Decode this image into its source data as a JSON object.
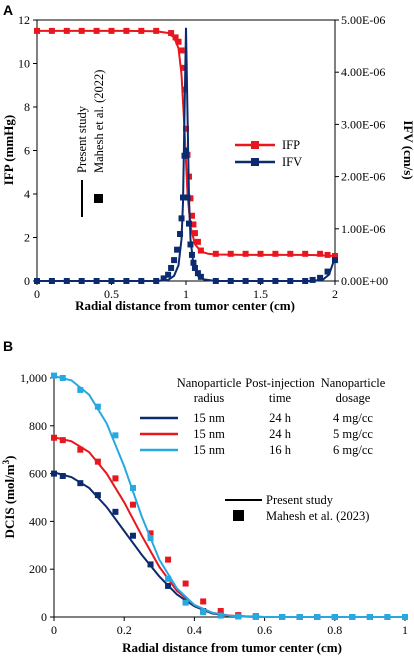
{
  "chart_data": [
    {
      "panel": "A",
      "type": "line",
      "xlabel": "Radial distance from tumor center (cm)",
      "ylabel": "IFP (mmHg)",
      "y2label": "IFV (cm/s)",
      "xlim": [
        0,
        2
      ],
      "ylim": [
        0,
        12
      ],
      "y2lim": [
        0,
        5e-06
      ],
      "xticks": [
        "0",
        "0.5",
        "1",
        "1.5",
        "2"
      ],
      "yticks": [
        "0",
        "2",
        "4",
        "6",
        "8",
        "10",
        "12"
      ],
      "y2ticks": [
        "0.00E+00",
        "1.00E-06",
        "2.00E-06",
        "3.00E-06",
        "4.00E-06",
        "5.00E-06"
      ],
      "legend": [
        "IFP",
        "IFV"
      ],
      "key_labels": [
        "Present study",
        "Mahesh et al. (2022)"
      ],
      "series": [
        {
          "name": "IFP",
          "axis": "left",
          "color": "#e8171d",
          "line": {
            "x": [
              0,
              0.2,
              0.4,
              0.6,
              0.8,
              0.88,
              0.92,
              0.95,
              0.97,
              0.99,
              1.0,
              1.01,
              1.03,
              1.06,
              1.1,
              1.15,
              1.2,
              1.4,
              1.6,
              1.8,
              1.9,
              2.0
            ],
            "y": [
              11.5,
              11.5,
              11.5,
              11.5,
              11.48,
              11.4,
              11.2,
              10.7,
              9.5,
              7.0,
              5.5,
              4.0,
              2.5,
              1.7,
              1.35,
              1.25,
              1.22,
              1.2,
              1.2,
              1.2,
              1.18,
              1.15
            ]
          },
          "markers": {
            "x": [
              0,
              0.1,
              0.2,
              0.3,
              0.4,
              0.5,
              0.6,
              0.7,
              0.8,
              0.9,
              0.93,
              0.95,
              0.97,
              0.98,
              0.99,
              1.0,
              1.01,
              1.02,
              1.03,
              1.04,
              1.05,
              1.06,
              1.08,
              1.1,
              1.2,
              1.3,
              1.4,
              1.5,
              1.6,
              1.7,
              1.8,
              1.9,
              1.95,
              2.0
            ],
            "y": [
              11.5,
              11.5,
              11.5,
              11.5,
              11.5,
              11.5,
              11.5,
              11.5,
              11.5,
              11.4,
              11.2,
              11.0,
              10.6,
              9.8,
              8.8,
              7.0,
              5.8,
              4.8,
              3.8,
              3.0,
              2.6,
              2.2,
              1.8,
              1.4,
              1.25,
              1.25,
              1.25,
              1.25,
              1.25,
              1.25,
              1.25,
              1.25,
              1.2,
              1.15
            ]
          }
        },
        {
          "name": "IFV",
          "axis": "right",
          "color": "#0c2a6e",
          "line": {
            "x": [
              0,
              0.6,
              0.8,
              0.88,
              0.92,
              0.95,
              0.97,
              0.98,
              0.99,
              1.0,
              1.01,
              1.02,
              1.03,
              1.05,
              1.08,
              1.12,
              1.2,
              1.6,
              1.85,
              1.92,
              1.96,
              2.0
            ],
            "y": [
              0,
              0,
              0,
              2e-08,
              1e-07,
              3e-07,
              8e-07,
              1.5e-06,
              3.2e-06,
              4.85e-06,
              3.2e-06,
              1.6e-06,
              8e-07,
              3e-07,
              1e-07,
              3e-08,
              0,
              0,
              0,
              3e-08,
              1.2e-07,
              4.5e-07
            ]
          },
          "markers": {
            "x": [
              0,
              0.1,
              0.2,
              0.3,
              0.4,
              0.5,
              0.6,
              0.7,
              0.8,
              0.85,
              0.88,
              0.9,
              0.92,
              0.94,
              0.96,
              0.97,
              0.98,
              0.99,
              1.0,
              1.01,
              1.02,
              1.03,
              1.04,
              1.05,
              1.06,
              1.08,
              1.1,
              1.2,
              1.3,
              1.4,
              1.5,
              1.6,
              1.7,
              1.8,
              1.85,
              1.9,
              1.95,
              2.0
            ],
            "y": [
              0,
              0,
              0,
              0,
              0,
              0,
              0,
              0,
              0,
              5e-08,
              1.2e-07,
              2.5e-07,
              4e-07,
              6e-07,
              9e-07,
              1.2e-06,
              1.6e-06,
              2.4e-06,
              2.5e-06,
              1.6e-06,
              1.1e-06,
              7e-07,
              5e-07,
              3.5e-07,
              2.5e-07,
              1.5e-07,
              8e-08,
              0,
              0,
              0,
              0,
              0,
              0,
              0,
              2e-08,
              6e-08,
              1.8e-07,
              4e-07
            ]
          }
        }
      ]
    },
    {
      "panel": "B",
      "type": "line",
      "xlabel": "Radial distance from tumor center (cm)",
      "ylabel": "DCIS (mol/m3)",
      "xlim": [
        0,
        1
      ],
      "ylim": [
        0,
        1000
      ],
      "xticks": [
        "0",
        "0.2",
        "0.4",
        "0.6",
        "0.8",
        "1"
      ],
      "yticks": [
        "0",
        "200",
        "400",
        "600",
        "800",
        "1,000"
      ],
      "table_headers": [
        "Nanoparticle\nradius",
        "Post-injection\ntime",
        "Nanoparticle\ndosage"
      ],
      "table_rows": [
        [
          "15 nm",
          "24 h",
          "4 mg/cc"
        ],
        [
          "15 nm",
          "24 h",
          "5 mg/cc"
        ],
        [
          "15 nm",
          "16 h",
          "6 mg/cc"
        ]
      ],
      "key_labels": [
        "Present study",
        "Mahesh et al. (2023)"
      ],
      "series": [
        {
          "name": "15 nm / 24 h / 4 mg/cc",
          "color": "#0c2a6e",
          "line": {
            "x": [
              0,
              0.05,
              0.1,
              0.15,
              0.2,
              0.25,
              0.3,
              0.35,
              0.4,
              0.45,
              0.5,
              0.55,
              0.6,
              0.7,
              0.8,
              0.9,
              1.0
            ],
            "y": [
              605,
              585,
              540,
              460,
              360,
              260,
              170,
              95,
              45,
              15,
              5,
              2,
              0,
              0,
              0,
              0,
              0
            ]
          },
          "markers": {
            "x": [
              0,
              0.025,
              0.075,
              0.125,
              0.175,
              0.225,
              0.275,
              0.325,
              0.375,
              0.425,
              0.475,
              0.525,
              0.575,
              0.65,
              0.7,
              0.75,
              0.8,
              0.85,
              0.9,
              0.95,
              1.0
            ],
            "y": [
              600,
              590,
              560,
              510,
              440,
              340,
              220,
              130,
              65,
              25,
              10,
              5,
              2,
              0,
              0,
              0,
              0,
              0,
              0,
              0,
              0
            ]
          }
        },
        {
          "name": "15 nm / 24 h / 5 mg/cc",
          "color": "#e8171d",
          "line": {
            "x": [
              0,
              0.05,
              0.1,
              0.15,
              0.2,
              0.25,
              0.3,
              0.35,
              0.4,
              0.45,
              0.5,
              0.55,
              0.6,
              0.7,
              0.8,
              0.9,
              1.0
            ],
            "y": [
              752,
              735,
              690,
              600,
              480,
              340,
              210,
              110,
              50,
              18,
              6,
              2,
              0,
              0,
              0,
              0,
              0
            ]
          },
          "markers": {
            "x": [
              0,
              0.025,
              0.075,
              0.125,
              0.175,
              0.225,
              0.275,
              0.325,
              0.375,
              0.425,
              0.475,
              0.525,
              0.575,
              0.65,
              0.7,
              0.75,
              0.8,
              0.85,
              0.9,
              0.95,
              1.0
            ],
            "y": [
              750,
              740,
              700,
              650,
              580,
              470,
              350,
              240,
              140,
              65,
              25,
              8,
              3,
              0,
              0,
              0,
              0,
              0,
              0,
              0,
              0
            ]
          }
        },
        {
          "name": "15 nm / 16 h / 6 mg/cc",
          "color": "#27a8e0",
          "line": {
            "x": [
              0,
              0.05,
              0.1,
              0.15,
              0.2,
              0.25,
              0.3,
              0.35,
              0.4,
              0.45,
              0.5,
              0.55,
              0.6,
              0.7,
              0.8,
              0.9,
              1.0
            ],
            "y": [
              1008,
              990,
              930,
              810,
              630,
              420,
              240,
              120,
              50,
              18,
              5,
              1,
              0,
              0,
              0,
              0,
              0
            ]
          },
          "markers": {
            "x": [
              0,
              0.025,
              0.075,
              0.125,
              0.175,
              0.225,
              0.275,
              0.325,
              0.375,
              0.425,
              0.475,
              0.525,
              0.575,
              0.65,
              0.7,
              0.75,
              0.8,
              0.85,
              0.9,
              0.95,
              1.0
            ],
            "y": [
              1010,
              1000,
              950,
              880,
              760,
              540,
              330,
              160,
              60,
              20,
              6,
              2,
              0,
              0,
              0,
              0,
              0,
              0,
              0,
              0,
              0
            ]
          }
        }
      ]
    }
  ]
}
